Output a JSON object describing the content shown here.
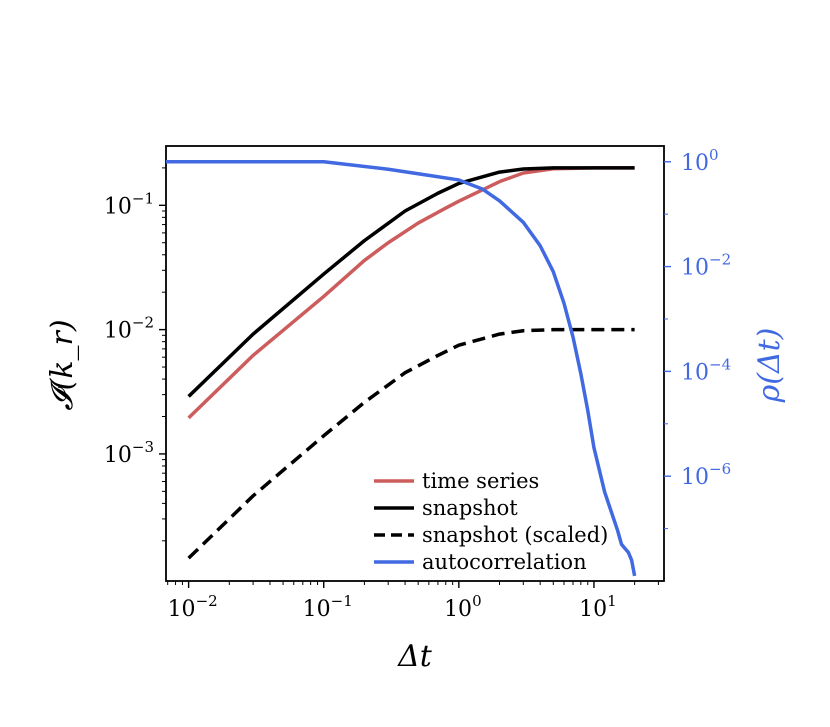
{
  "chart_data": {
    "type": "line",
    "xlabel": "Δt",
    "ylabel_left": "𝓘(k_r)",
    "ylabel_right": "ρ(Δt)",
    "xscale": "log",
    "yscale_left": "log",
    "yscale_right": "log",
    "xlim": [
      0.0068,
      33
    ],
    "ylim_left": [
      9.5e-05,
      0.3
    ],
    "ylim_right": [
      1e-08,
      2.0
    ],
    "grid": false,
    "legend_position": "lower-center",
    "x_ticks": [
      {
        "base": "10",
        "exp": "−2",
        "value": 0.01
      },
      {
        "base": "10",
        "exp": "−1",
        "value": 0.1
      },
      {
        "base": "10",
        "exp": "0",
        "value": 1
      },
      {
        "base": "10",
        "exp": "1",
        "value": 10
      }
    ],
    "y_ticks_left": [
      {
        "base": "10",
        "exp": "−3",
        "value": 0.001
      },
      {
        "base": "10",
        "exp": "−2",
        "value": 0.01
      },
      {
        "base": "10",
        "exp": "−1",
        "value": 0.1
      }
    ],
    "y_ticks_right": [
      {
        "base": "10",
        "exp": "−6",
        "value": 1e-06
      },
      {
        "base": "10",
        "exp": "−4",
        "value": 0.0001
      },
      {
        "base": "10",
        "exp": "−2",
        "value": 0.01
      },
      {
        "base": "10",
        "exp": "0",
        "value": 1
      }
    ],
    "series": [
      {
        "name": "time series",
        "axis": "left",
        "color": "#cd5c5c",
        "dash": "solid",
        "points": [
          [
            0.01,
            0.00195
          ],
          [
            0.03,
            0.0062
          ],
          [
            0.1,
            0.0185
          ],
          [
            0.2,
            0.036
          ],
          [
            0.3,
            0.05
          ],
          [
            0.5,
            0.072
          ],
          [
            0.8,
            0.095
          ],
          [
            1.0,
            0.108
          ],
          [
            2.0,
            0.155
          ],
          [
            3.0,
            0.182
          ],
          [
            5.0,
            0.197
          ],
          [
            10.0,
            0.2
          ],
          [
            20.0,
            0.2
          ]
        ]
      },
      {
        "name": "snapshot",
        "axis": "left",
        "color": "#000000",
        "dash": "solid",
        "points": [
          [
            0.01,
            0.0029
          ],
          [
            0.03,
            0.0092
          ],
          [
            0.1,
            0.028
          ],
          [
            0.2,
            0.052
          ],
          [
            0.4,
            0.09
          ],
          [
            0.7,
            0.125
          ],
          [
            1.0,
            0.15
          ],
          [
            2.0,
            0.185
          ],
          [
            3.0,
            0.196
          ],
          [
            5.0,
            0.2
          ],
          [
            10.0,
            0.2
          ],
          [
            20.0,
            0.2
          ]
        ]
      },
      {
        "name": "snapshot (scaled)",
        "axis": "left",
        "color": "#000000",
        "dash": "dashed",
        "points": [
          [
            0.01,
            0.000145
          ],
          [
            0.03,
            0.00046
          ],
          [
            0.1,
            0.0014
          ],
          [
            0.2,
            0.0026
          ],
          [
            0.4,
            0.0045
          ],
          [
            0.7,
            0.0062
          ],
          [
            1.0,
            0.0075
          ],
          [
            2.0,
            0.0092
          ],
          [
            3.0,
            0.0098
          ],
          [
            5.0,
            0.01
          ],
          [
            10.0,
            0.01
          ],
          [
            20.0,
            0.01
          ]
        ]
      },
      {
        "name": "autocorrelation",
        "axis": "right",
        "color": "#4169e1",
        "dash": "solid",
        "points": [
          [
            0.0068,
            1.0
          ],
          [
            0.1,
            1.0
          ],
          [
            0.3,
            0.72
          ],
          [
            0.6,
            0.55
          ],
          [
            1.0,
            0.45
          ],
          [
            1.5,
            0.3
          ],
          [
            2.0,
            0.18
          ],
          [
            3.0,
            0.07
          ],
          [
            4.0,
            0.025
          ],
          [
            5.0,
            0.008
          ],
          [
            6.0,
            0.002
          ],
          [
            7.0,
            0.00045
          ],
          [
            8.0,
            9e-05
          ],
          [
            9.0,
            1.8e-05
          ],
          [
            10.0,
            3.5e-06
          ],
          [
            12.0,
            5e-07
          ],
          [
            15.0,
            9e-08
          ],
          [
            16.0,
            5e-08
          ],
          [
            18.0,
            3.5e-08
          ],
          [
            19.0,
            2.5e-08
          ],
          [
            20.0,
            1.25e-08
          ]
        ]
      }
    ]
  }
}
